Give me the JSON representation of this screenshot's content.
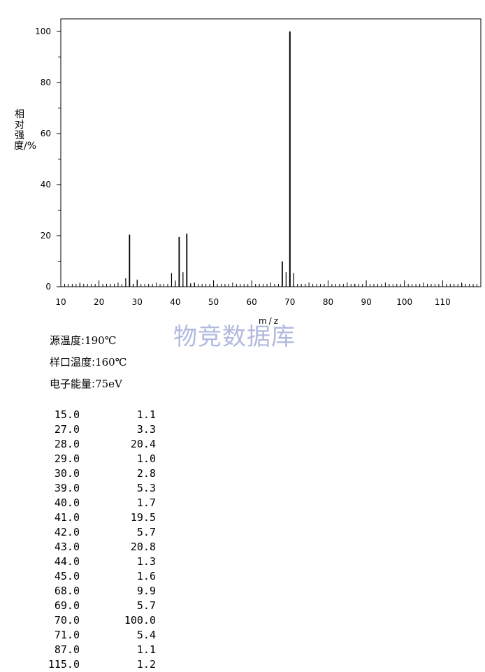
{
  "chart_data": {
    "type": "bar",
    "xlabel": "m/z",
    "ylabel": "相对强度/%",
    "xlim": [
      10,
      120
    ],
    "ylim": [
      0,
      105
    ],
    "xticks": [
      10,
      20,
      30,
      40,
      50,
      60,
      70,
      80,
      90,
      100,
      110
    ],
    "yticks": [
      0,
      20,
      40,
      60,
      80,
      100
    ],
    "peaks": [
      {
        "mz": 15.0,
        "intensity": 1.1
      },
      {
        "mz": 27.0,
        "intensity": 3.3
      },
      {
        "mz": 28.0,
        "intensity": 20.4
      },
      {
        "mz": 29.0,
        "intensity": 1.0
      },
      {
        "mz": 30.0,
        "intensity": 2.8
      },
      {
        "mz": 39.0,
        "intensity": 5.3
      },
      {
        "mz": 40.0,
        "intensity": 1.7
      },
      {
        "mz": 41.0,
        "intensity": 19.5
      },
      {
        "mz": 42.0,
        "intensity": 5.7
      },
      {
        "mz": 43.0,
        "intensity": 20.8
      },
      {
        "mz": 44.0,
        "intensity": 1.3
      },
      {
        "mz": 45.0,
        "intensity": 1.6
      },
      {
        "mz": 68.0,
        "intensity": 9.9
      },
      {
        "mz": 69.0,
        "intensity": 5.7
      },
      {
        "mz": 70.0,
        "intensity": 100.0
      },
      {
        "mz": 71.0,
        "intensity": 5.4
      },
      {
        "mz": 87.0,
        "intensity": 1.1
      },
      {
        "mz": 115.0,
        "intensity": 1.2
      }
    ]
  },
  "watermark": "物竞数据库",
  "params": [
    {
      "label": "源温度:",
      "value": "190℃"
    },
    {
      "label": "样口温度:",
      "value": "160℃"
    },
    {
      "label": "电子能量:",
      "value": "75eV"
    }
  ],
  "peak_table": [
    [
      "15.0",
      "1.1"
    ],
    [
      "27.0",
      "3.3"
    ],
    [
      "28.0",
      "20.4"
    ],
    [
      "29.0",
      "1.0"
    ],
    [
      "30.0",
      "2.8"
    ],
    [
      "39.0",
      "5.3"
    ],
    [
      "40.0",
      "1.7"
    ],
    [
      "41.0",
      "19.5"
    ],
    [
      "42.0",
      "5.7"
    ],
    [
      "43.0",
      "20.8"
    ],
    [
      "44.0",
      "1.3"
    ],
    [
      "45.0",
      "1.6"
    ],
    [
      "68.0",
      "9.9"
    ],
    [
      "69.0",
      "5.7"
    ],
    [
      "70.0",
      "100.0"
    ],
    [
      "71.0",
      "5.4"
    ],
    [
      "87.0",
      "1.1"
    ],
    [
      "115.0",
      "1.2"
    ]
  ]
}
